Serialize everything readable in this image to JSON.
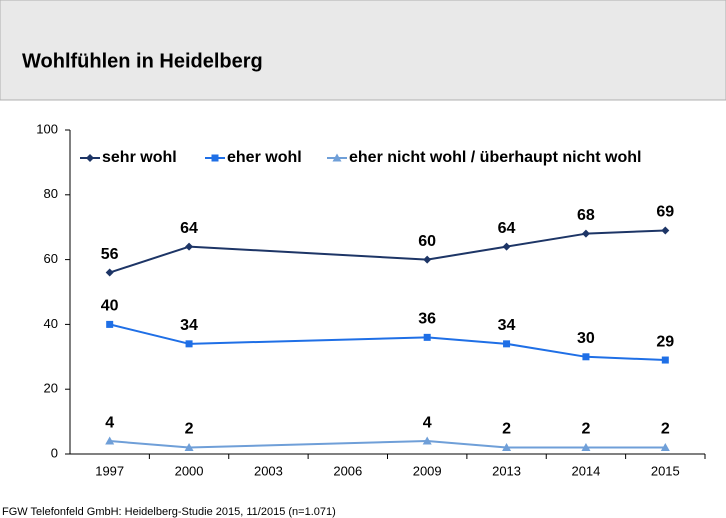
{
  "chart_data": {
    "type": "line",
    "title": "Wohlfühlen in Heidelberg",
    "source": "FGW Telefonfeld GmbH: Heidelberg-Studie 2015, 11/2015 (n=1.071)",
    "categories": [
      "1997",
      "2000",
      "2003",
      "2006",
      "2009",
      "2013",
      "2014",
      "2015"
    ],
    "series": [
      {
        "name": "sehr wohl",
        "color": "#1d3566",
        "marker": "diamond",
        "values": [
          56,
          64,
          null,
          null,
          60,
          64,
          68,
          69
        ]
      },
      {
        "name": "eher wohl",
        "color": "#1f6fe6",
        "marker": "square",
        "values": [
          40,
          34,
          null,
          null,
          36,
          34,
          30,
          29
        ]
      },
      {
        "name": "eher nicht wohl / überhaupt nicht wohl",
        "color": "#6f9fd8",
        "marker": "triangle",
        "values": [
          4,
          2,
          null,
          null,
          4,
          2,
          2,
          2
        ]
      }
    ],
    "ylim": [
      0,
      100
    ],
    "yticks": [
      0,
      20,
      40,
      60,
      80,
      100
    ],
    "grid": false,
    "legend": "top"
  }
}
